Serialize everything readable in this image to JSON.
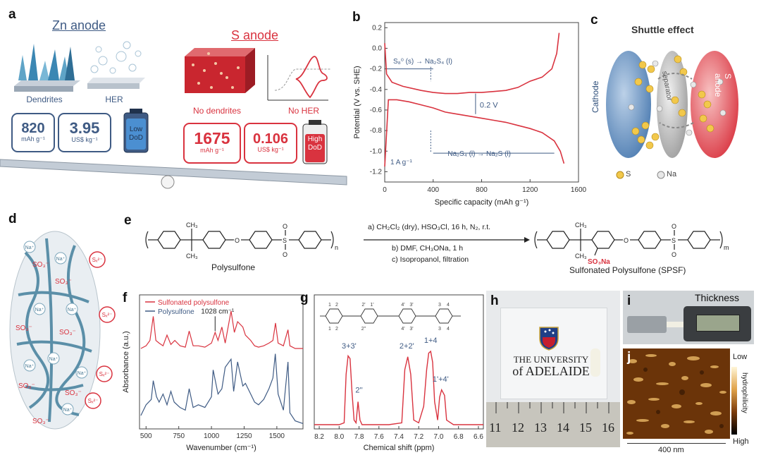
{
  "panels": {
    "a": {
      "label": "a",
      "zn_title": "Zn anode",
      "s_title": "S anode",
      "dendrites": "Dendrites",
      "her": "HER",
      "no_dendrites": "No dendrites",
      "no_her": "No HER",
      "zn_capacity": {
        "value": "820",
        "unit": "mAh g⁻¹"
      },
      "zn_cost": {
        "value": "3.95",
        "unit": "US$ kg⁻¹"
      },
      "zn_battery": {
        "line1": "Low",
        "line2": "DoD"
      },
      "s_capacity": {
        "value": "1675",
        "unit": "mAh g⁻¹"
      },
      "s_cost": {
        "value": "0.106",
        "unit": "US$ kg⁻¹"
      },
      "s_battery": {
        "line1": "High",
        "line2": "DoD"
      }
    },
    "b": {
      "label": "b",
      "ylabel": "Potential (V vs. SHE)",
      "xlabel": "Specific capacity (mAh g⁻¹)",
      "xticks": [
        "0",
        "400",
        "800",
        "1200",
        "1600"
      ],
      "yticks": [
        "0.2",
        "0.0",
        "-0.2",
        "-0.4",
        "-0.6",
        "-0.8",
        "-1.0",
        "-1.2"
      ],
      "ann_top": "S₈⁰ (s) → Na₂S₄ (l)",
      "ann_gap": "0.2 V",
      "ann_bottom": "Na₂S₄ (l) → Na₂S (l)",
      "rate": "1 A g⁻¹"
    },
    "c": {
      "label": "c",
      "title": "Shuttle effect",
      "cathode": "Cathode",
      "separator": "separator",
      "s_anode": "S anode",
      "legend_s": "S",
      "legend_na": "Na"
    },
    "d": {
      "label": "d",
      "sulfonate": "SO₃⁻",
      "cation": "Na⁺",
      "polysulfide": "Sₓ²⁻"
    },
    "e": {
      "label": "e",
      "reactant": "Polysulfone",
      "product": "Sulfonated Polysulfone (SPSF)",
      "cond_a": "a) CH₂Cl₂ (dry), HSO₃Cl, 16 h, N₂, r.t.",
      "cond_b": "b) DMF, CH₃ONa, 1 h",
      "cond_c": "c) Isopropanol, filtration",
      "group": "SO₃Na",
      "methyl": "CH₃",
      "oxygen": "O",
      "sulfur": "S",
      "n": "n",
      "m": "m"
    },
    "f": {
      "label": "f",
      "legend": [
        "Sulfonated polysulfone",
        "Polysulfone"
      ],
      "peak": "1028 cm⁻¹",
      "ylabel": "Absorbance (a.u.)",
      "xlabel": "Wavenumber (cm⁻¹)",
      "xticks": [
        "500",
        "750",
        "1000",
        "1250",
        "1500"
      ]
    },
    "g": {
      "label": "g",
      "xlabel": "Chemical shift (ppm)",
      "xticks": [
        "8.2",
        "8.0",
        "7.8",
        "7.6",
        "7.4",
        "7.2",
        "7.0",
        "6.8",
        "6.6"
      ],
      "peaks": [
        "3+3'",
        "2''",
        "2+2'",
        "1+4",
        "1'+4'"
      ],
      "struct_nums": [
        "1",
        "2",
        "2'",
        "1'",
        "4'",
        "3'",
        "3",
        "4",
        "1",
        "2",
        "2''",
        "4'",
        "3'",
        "3",
        "4"
      ]
    },
    "h": {
      "label": "h",
      "logo_line1": "THE UNIVERSITY",
      "logo_line2": "of ADELAIDE",
      "ruler": [
        "11",
        "12",
        "13",
        "14",
        "15",
        "16"
      ]
    },
    "i": {
      "label": "i",
      "title": "Thickness"
    },
    "j": {
      "label": "j",
      "low": "Low",
      "high": "High",
      "axis": "hydrophilicity",
      "scale": "400 nm"
    }
  },
  "colors": {
    "zn_blue": "#3f5b84",
    "s_red": "#d9333f",
    "sulfonated": "#d9333f",
    "polysulfone": "#3f5b84",
    "sulfur_yellow": "#f2c84b"
  },
  "chart_data": [
    {
      "type": "line",
      "panel": "b",
      "xlabel": "Specific capacity (mAh g⁻¹)",
      "ylabel": "Potential (V vs. SHE)",
      "xlim": [
        0,
        1600
      ],
      "ylim": [
        -1.3,
        0.25
      ],
      "series": [
        {
          "x": [
            0,
            30,
            100,
            200,
            300,
            400,
            500,
            600,
            700,
            800,
            900,
            1000,
            1100,
            1200,
            1300,
            1400,
            1450,
            1480
          ],
          "y": [
            -1.15,
            -0.5,
            -0.5,
            -0.52,
            -0.55,
            -0.58,
            -0.62,
            -0.64,
            -0.66,
            -0.68,
            -0.7,
            -0.72,
            -0.75,
            -0.78,
            -0.82,
            -0.9,
            -1.0,
            -1.12
          ]
        },
        {
          "x": [
            0,
            15,
            60,
            150,
            300,
            400,
            500,
            600,
            700,
            800,
            900,
            1000,
            1100,
            1200,
            1300,
            1380,
            1420,
            1440
          ],
          "y": [
            0.05,
            -0.25,
            -0.33,
            -0.37,
            -0.41,
            -0.43,
            -0.44,
            -0.44,
            -0.43,
            -0.43,
            -0.42,
            -0.41,
            -0.38,
            -0.32,
            -0.28,
            -0.2,
            -0.05,
            0.15
          ]
        }
      ]
    },
    {
      "type": "line",
      "panel": "f",
      "xlabel": "Wavenumber (cm⁻¹)",
      "ylabel": "Absorbance (a.u.)",
      "xlim": [
        450,
        1700
      ],
      "series": [
        {
          "name": "Sulfonated polysulfone",
          "x": [
            460,
            500,
            530,
            555,
            575,
            600,
            630,
            660,
            690,
            720,
            760,
            800,
            830,
            860,
            900,
            950,
            1000,
            1028,
            1050,
            1080,
            1105,
            1150,
            1175,
            1200,
            1240,
            1260,
            1300,
            1330,
            1360,
            1400,
            1440,
            1470,
            1490,
            1510,
            1550,
            1585,
            1600,
            1640,
            1700
          ],
          "y": [
            0.6,
            0.62,
            0.66,
            0.84,
            0.66,
            0.64,
            0.62,
            0.7,
            0.63,
            0.66,
            0.62,
            0.61,
            0.73,
            0.62,
            0.62,
            0.61,
            0.64,
            0.72,
            0.66,
            0.76,
            0.64,
            0.88,
            0.72,
            0.8,
            0.76,
            0.7,
            0.66,
            0.62,
            0.61,
            0.62,
            0.64,
            0.66,
            0.79,
            0.64,
            0.62,
            0.74,
            0.62,
            0.6,
            0.6
          ]
        },
        {
          "name": "Polysulfone",
          "x": [
            460,
            500,
            540,
            555,
            580,
            600,
            630,
            660,
            690,
            715,
            760,
            800,
            830,
            860,
            900,
            950,
            1000,
            1013,
            1050,
            1080,
            1105,
            1150,
            1170,
            1200,
            1240,
            1260,
            1300,
            1330,
            1360,
            1400,
            1440,
            1470,
            1488,
            1510,
            1550,
            1585,
            1600,
            1640,
            1700
          ],
          "y": [
            0.1,
            0.18,
            0.22,
            0.36,
            0.24,
            0.2,
            0.26,
            0.18,
            0.28,
            0.2,
            0.16,
            0.14,
            0.3,
            0.16,
            0.18,
            0.16,
            0.24,
            0.44,
            0.26,
            0.3,
            0.46,
            0.52,
            0.28,
            0.5,
            0.32,
            0.34,
            0.26,
            0.2,
            0.18,
            0.22,
            0.3,
            0.38,
            0.56,
            0.26,
            0.14,
            0.5,
            0.12,
            0.06,
            0.04
          ]
        }
      ]
    },
    {
      "type": "line",
      "panel": "g",
      "xlabel": "Chemical shift (ppm)",
      "xlim": [
        8.25,
        6.55
      ],
      "series": [
        {
          "x": [
            8.25,
            8.0,
            7.95,
            7.93,
            7.91,
            7.89,
            7.87,
            7.85,
            7.83,
            7.81,
            7.79,
            7.77,
            7.5,
            7.37,
            7.34,
            7.31,
            7.28,
            7.25,
            7.2,
            7.15,
            7.12,
            7.1,
            7.08,
            7.06,
            7.04,
            7.01,
            6.99,
            6.97,
            6.94,
            6.92,
            6.85,
            6.55
          ],
          "y": [
            0.0,
            0.0,
            0.02,
            0.55,
            0.75,
            0.72,
            0.35,
            0.05,
            0.02,
            0.25,
            0.05,
            0.0,
            0.0,
            0.02,
            0.6,
            0.74,
            0.55,
            0.05,
            0.02,
            0.2,
            0.6,
            0.78,
            0.8,
            0.68,
            0.25,
            0.05,
            0.3,
            0.38,
            0.32,
            0.05,
            0.0,
            0.0
          ]
        }
      ]
    }
  ]
}
